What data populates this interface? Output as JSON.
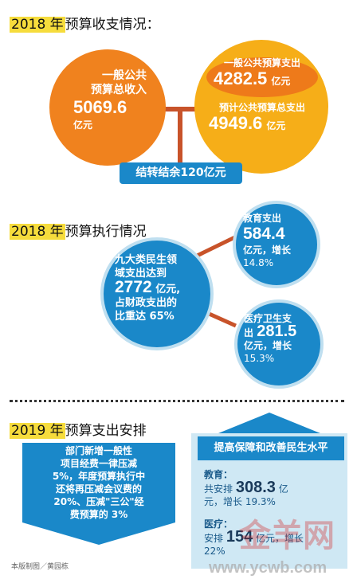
{
  "section1": {
    "title_year": "2018 年",
    "title_rest": "预算收支情况：",
    "revenue": {
      "label_line1": "一般公共",
      "label_line2": "预算总收入",
      "value": "5069.6",
      "unit": "亿元"
    },
    "expenditure": {
      "label": "一般公共预算支出",
      "value": "4282.5",
      "unit": "亿元",
      "label2": "预计公共预算总支出",
      "value2": "4949.6",
      "unit2": "亿元"
    },
    "balance": "结转结余120亿元"
  },
  "section2": {
    "title_year": "2018 年",
    "title_rest": "预算执行情况",
    "livelihood": {
      "line1": "九大类民生领",
      "line2": "域支出达到",
      "value": "2772",
      "unit": "亿元,",
      "line3": "占财政支出的",
      "line4": "比重达 65%"
    },
    "education": {
      "label": "教育支出",
      "value": "584.4",
      "unit": "亿元，增长",
      "growth": "14.8%"
    },
    "health": {
      "label": "医疗卫生支",
      "prefix": "出",
      "value": "281.5",
      "unit": "亿元，增长",
      "growth": "15.3%"
    }
  },
  "section3": {
    "title_year": "2019 年",
    "title_rest": "预算支出安排",
    "cut": {
      "lines": [
        "部门新增一般性",
        "项目经费一律压减",
        "5%，年度预算执行中",
        "还将再压减会议费的",
        "20%、压减\"三公\"经",
        "费预算的 3%"
      ]
    },
    "improve": {
      "header": "提高保障和改善民生水平",
      "edu_label": "教育：",
      "edu_prefix": "共安排",
      "edu_value": "308.3",
      "edu_unit": "亿",
      "edu_growth": "元，增长 19.3%",
      "med_label": "医疗：",
      "med_prefix": "安排",
      "med_value": "154",
      "med_unit": "亿元，增长",
      "med_growth": "22%"
    }
  },
  "credit": "本版制图／黄园栋",
  "watermark": {
    "logo": "金羊网",
    "url": "www.ycwb.com"
  },
  "colors": {
    "orange": "#f0821e",
    "amber": "#f6ae18",
    "blue": "#1a88c9",
    "highlight": "#f6dc3c",
    "connector": "#c8532a",
    "light_blue": "#cfe8f4"
  }
}
